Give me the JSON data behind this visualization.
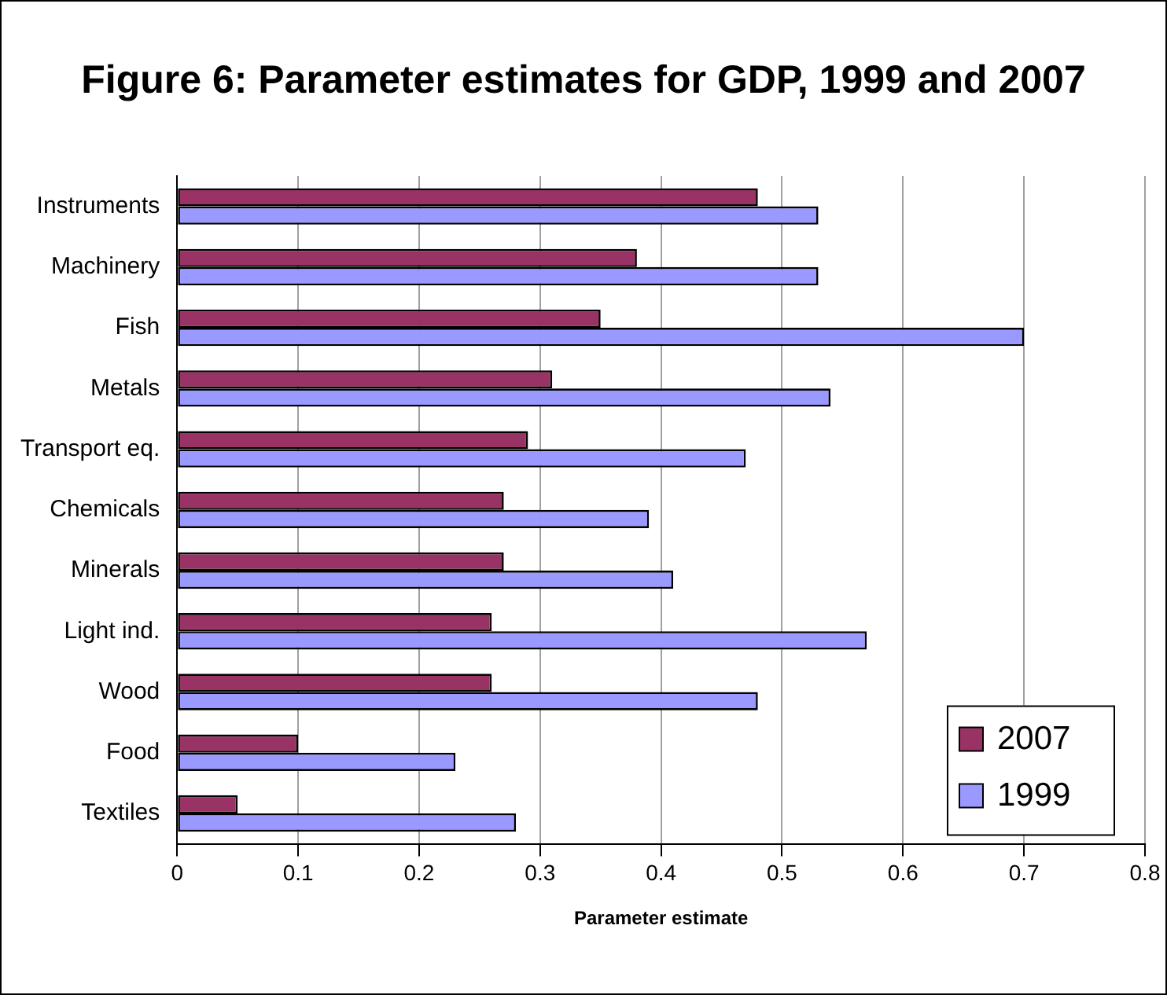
{
  "chart_data": {
    "type": "bar",
    "orientation": "horizontal",
    "title": "Figure 6: Parameter estimates for GDP, 1999 and 2007",
    "xlabel": "Parameter estimate",
    "categories": [
      "Instruments",
      "Machinery",
      "Fish",
      "Metals",
      "Transport eq.",
      "Chemicals",
      "Minerals",
      "Light ind.",
      "Wood",
      "Food",
      "Textiles"
    ],
    "series": [
      {
        "name": "2007",
        "color": "#993366",
        "values": [
          0.48,
          0.38,
          0.35,
          0.31,
          0.29,
          0.27,
          0.27,
          0.26,
          0.26,
          0.1,
          0.05
        ]
      },
      {
        "name": "1999",
        "color": "#9999ff",
        "values": [
          0.53,
          0.53,
          0.7,
          0.54,
          0.47,
          0.39,
          0.41,
          0.57,
          0.48,
          0.23,
          0.28
        ]
      }
    ],
    "xlim": [
      0,
      0.8
    ],
    "xticks": [
      0,
      0.1,
      0.2,
      0.3,
      0.4,
      0.5,
      0.6,
      0.7,
      0.8
    ],
    "grid": "x",
    "legend": "bottom right"
  }
}
